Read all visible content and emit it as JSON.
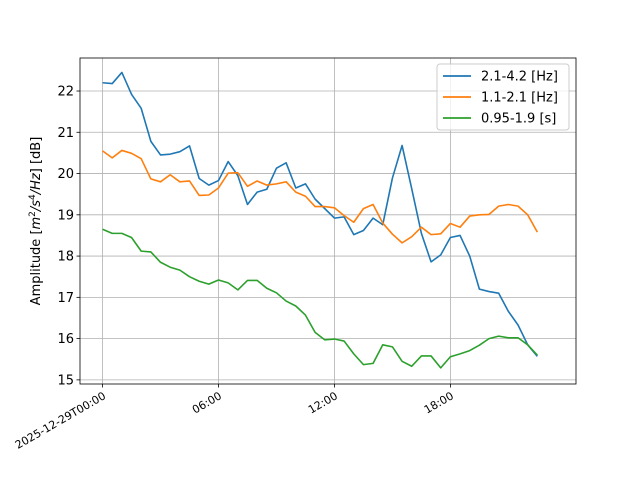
{
  "chart_data": {
    "type": "line",
    "title": "",
    "xlabel": "",
    "ylabel": "Amplitude [m²/s⁴/Hz] [dB]",
    "ylabel_parts": {
      "prefix": "Amplitude [",
      "m": "m",
      "two": "2",
      "slash_s": "/s",
      "four": "4",
      "hz": "/Hz",
      "suffix": "] [dB]"
    },
    "xlim": [
      "2025-12-28T22:50",
      "2025-12-30T00:30"
    ],
    "ylim": [
      14.9,
      22.8
    ],
    "grid": true,
    "legend_position": "top-right",
    "x_ticks": [
      {
        "value": "2025-12-29T00:00",
        "label": "2025-12-29T00:00"
      },
      {
        "value": "2025-12-29T06:00",
        "label": "06:00"
      },
      {
        "value": "2025-12-29T12:00",
        "label": "12:00"
      },
      {
        "value": "2025-12-29T18:00",
        "label": "18:00"
      }
    ],
    "y_ticks": [
      {
        "value": 15,
        "label": "15"
      },
      {
        "value": 16,
        "label": "16"
      },
      {
        "value": 17,
        "label": "17"
      },
      {
        "value": 18,
        "label": "18"
      },
      {
        "value": 19,
        "label": "19"
      },
      {
        "value": 20,
        "label": "20"
      },
      {
        "value": 21,
        "label": "21"
      },
      {
        "value": 22,
        "label": "22"
      }
    ],
    "x": [
      "2025-12-29T00:00",
      "2025-12-29T00:30",
      "2025-12-29T01:00",
      "2025-12-29T01:30",
      "2025-12-29T02:00",
      "2025-12-29T02:30",
      "2025-12-29T03:00",
      "2025-12-29T03:30",
      "2025-12-29T04:00",
      "2025-12-29T04:30",
      "2025-12-29T05:00",
      "2025-12-29T05:30",
      "2025-12-29T06:00",
      "2025-12-29T06:30",
      "2025-12-29T07:00",
      "2025-12-29T07:30",
      "2025-12-29T08:00",
      "2025-12-29T08:30",
      "2025-12-29T09:00",
      "2025-12-29T09:30",
      "2025-12-29T10:00",
      "2025-12-29T10:30",
      "2025-12-29T11:00",
      "2025-12-29T11:30",
      "2025-12-29T12:00",
      "2025-12-29T12:30",
      "2025-12-29T13:00",
      "2025-12-29T13:30",
      "2025-12-29T14:00",
      "2025-12-29T14:30",
      "2025-12-29T15:00",
      "2025-12-29T15:30",
      "2025-12-29T16:00",
      "2025-12-29T16:30",
      "2025-12-29T17:00",
      "2025-12-29T17:30",
      "2025-12-29T18:00",
      "2025-12-29T18:30",
      "2025-12-29T19:00",
      "2025-12-29T19:30",
      "2025-12-29T20:00",
      "2025-12-29T20:30",
      "2025-12-29T21:00",
      "2025-12-29T21:30",
      "2025-12-29T22:00",
      "2025-12-29T22:30"
    ],
    "series": [
      {
        "name": "2.1-4.2 [Hz]",
        "color": "#1f77b4",
        "values": [
          22.2,
          22.18,
          22.45,
          21.92,
          21.58,
          20.78,
          20.45,
          20.47,
          20.53,
          20.67,
          19.88,
          19.72,
          19.83,
          20.29,
          19.95,
          19.25,
          19.55,
          19.62,
          20.13,
          20.26,
          19.65,
          19.75,
          19.38,
          19.15,
          18.92,
          18.95,
          18.52,
          18.62,
          18.92,
          18.76,
          19.89,
          20.68,
          19.63,
          18.55,
          17.86,
          18.03,
          18.45,
          18.5,
          18.0,
          17.2,
          17.14,
          17.1,
          16.66,
          16.33,
          15.85,
          15.57
        ]
      },
      {
        "name": "1.1-2.1 [Hz]",
        "color": "#ff7f0e",
        "values": [
          20.55,
          20.38,
          20.56,
          20.49,
          20.36,
          19.87,
          19.8,
          19.97,
          19.8,
          19.82,
          19.47,
          19.48,
          19.65,
          20.01,
          20.02,
          19.69,
          19.82,
          19.72,
          19.75,
          19.8,
          19.55,
          19.45,
          19.2,
          19.2,
          19.17,
          18.98,
          18.82,
          19.15,
          19.25,
          18.8,
          18.53,
          18.32,
          18.47,
          18.7,
          18.52,
          18.54,
          18.79,
          18.7,
          18.97,
          19.0,
          19.01,
          19.21,
          19.25,
          19.21,
          19.0,
          18.58
        ]
      },
      {
        "name": "0.95-1.9 [s]",
        "color": "#2ca02c",
        "values": [
          18.65,
          18.55,
          18.55,
          18.45,
          18.12,
          18.1,
          17.85,
          17.73,
          17.66,
          17.5,
          17.39,
          17.32,
          17.42,
          17.35,
          17.18,
          17.41,
          17.41,
          17.22,
          17.11,
          16.91,
          16.79,
          16.57,
          16.15,
          15.97,
          15.99,
          15.94,
          15.63,
          15.37,
          15.4,
          15.85,
          15.8,
          15.45,
          15.33,
          15.58,
          15.58,
          15.29,
          15.56,
          15.63,
          15.71,
          15.84,
          16.0,
          16.06,
          16.02,
          16.02,
          15.85,
          15.6
        ]
      }
    ]
  }
}
